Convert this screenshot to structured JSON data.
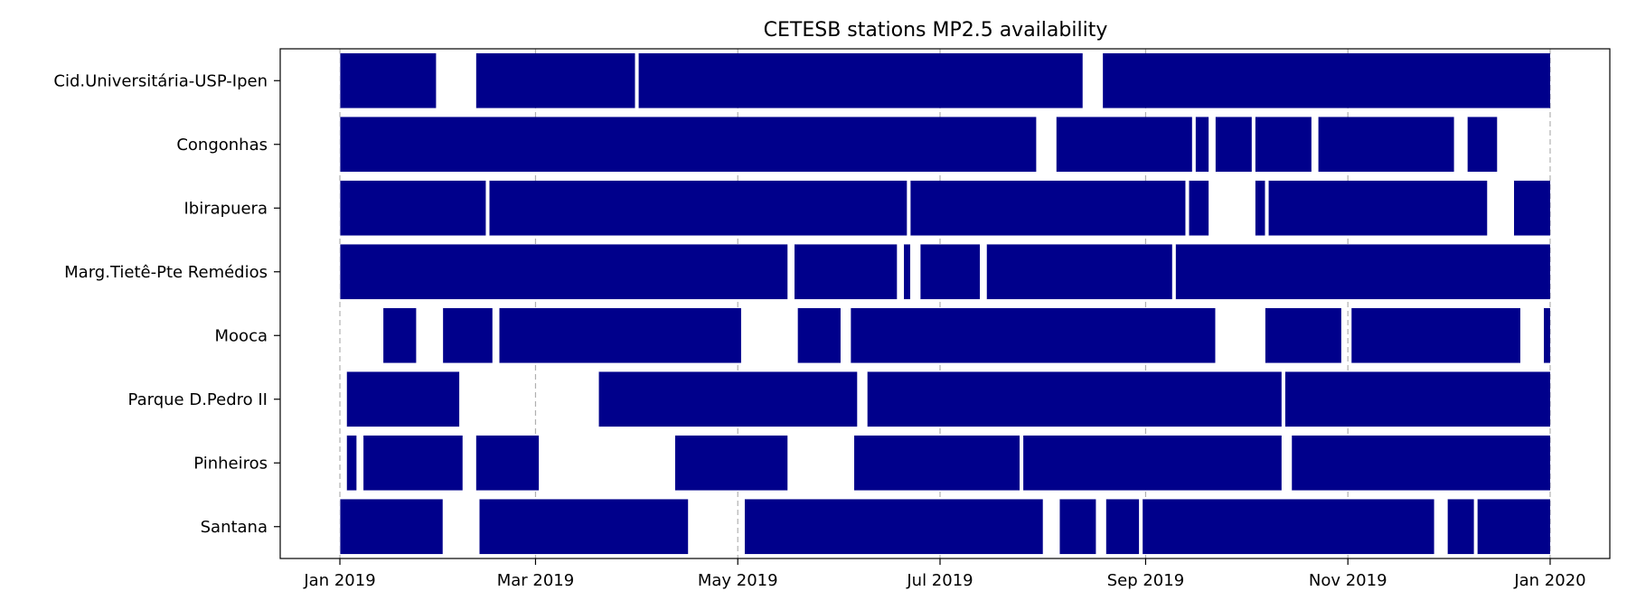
{
  "chart_data": {
    "type": "broken_barh",
    "title": "CETESB stations MP2.5 availability",
    "xlabel": "",
    "ylabel": "",
    "x_ticks": [
      "2019-01-01",
      "2019-03-01",
      "2019-05-01",
      "2019-07-01",
      "2019-09-01",
      "2019-11-01",
      "2020-01-01"
    ],
    "x_tick_labels": [
      "Jan 2019",
      "Mar 2019",
      "May 2019",
      "Jul 2019",
      "Sep 2019",
      "Nov 2019",
      "Jan 2020"
    ],
    "xlim": [
      "2018-12-14",
      "2020-01-19"
    ],
    "grid": "x-dashed",
    "bar_color": "#00008b",
    "stations": [
      {
        "name": "Cid.Universitária-USP-Ipen",
        "intervals": [
          [
            "2019-01-01",
            "2019-01-30"
          ],
          [
            "2019-02-11",
            "2019-03-31"
          ],
          [
            "2019-04-01",
            "2019-08-13"
          ],
          [
            "2019-08-19",
            "2020-01-01"
          ]
        ]
      },
      {
        "name": "Congonhas",
        "intervals": [
          [
            "2019-01-01",
            "2019-07-30"
          ],
          [
            "2019-08-05",
            "2019-09-15"
          ],
          [
            "2019-09-16",
            "2019-09-20"
          ],
          [
            "2019-09-22",
            "2019-10-03"
          ],
          [
            "2019-10-04",
            "2019-10-21"
          ],
          [
            "2019-10-23",
            "2019-12-03"
          ],
          [
            "2019-12-07",
            "2019-12-16"
          ]
        ]
      },
      {
        "name": "Ibirapuera",
        "intervals": [
          [
            "2019-01-01",
            "2019-02-14"
          ],
          [
            "2019-02-15",
            "2019-06-21"
          ],
          [
            "2019-06-22",
            "2019-09-13"
          ],
          [
            "2019-09-14",
            "2019-09-20"
          ],
          [
            "2019-10-04",
            "2019-10-07"
          ],
          [
            "2019-10-08",
            "2019-12-13"
          ],
          [
            "2019-12-21",
            "2020-01-01"
          ]
        ]
      },
      {
        "name": "Marg.Tietê-Pte Remédios",
        "intervals": [
          [
            "2019-01-01",
            "2019-05-16"
          ],
          [
            "2019-05-18",
            "2019-06-18"
          ],
          [
            "2019-06-20",
            "2019-06-22"
          ],
          [
            "2019-06-25",
            "2019-07-13"
          ],
          [
            "2019-07-15",
            "2019-09-09"
          ],
          [
            "2019-09-10",
            "2020-01-01"
          ]
        ]
      },
      {
        "name": "Mooca",
        "intervals": [
          [
            "2019-01-14",
            "2019-01-24"
          ],
          [
            "2019-02-01",
            "2019-02-16"
          ],
          [
            "2019-02-18",
            "2019-05-02"
          ],
          [
            "2019-05-19",
            "2019-06-01"
          ],
          [
            "2019-06-04",
            "2019-09-22"
          ],
          [
            "2019-10-07",
            "2019-10-30"
          ],
          [
            "2019-11-02",
            "2019-12-23"
          ],
          [
            "2019-12-30",
            "2020-01-01"
          ]
        ]
      },
      {
        "name": "Parque D.Pedro II",
        "intervals": [
          [
            "2019-01-03",
            "2019-02-06"
          ],
          [
            "2019-03-20",
            "2019-06-06"
          ],
          [
            "2019-06-09",
            "2019-10-12"
          ],
          [
            "2019-10-13",
            "2020-01-01"
          ]
        ]
      },
      {
        "name": "Pinheiros",
        "intervals": [
          [
            "2019-01-03",
            "2019-01-06"
          ],
          [
            "2019-01-08",
            "2019-02-07"
          ],
          [
            "2019-02-11",
            "2019-03-02"
          ],
          [
            "2019-04-12",
            "2019-05-16"
          ],
          [
            "2019-06-05",
            "2019-07-25"
          ],
          [
            "2019-07-26",
            "2019-10-12"
          ],
          [
            "2019-10-15",
            "2020-01-01"
          ]
        ]
      },
      {
        "name": "Santana",
        "intervals": [
          [
            "2019-01-01",
            "2019-02-01"
          ],
          [
            "2019-02-12",
            "2019-04-16"
          ],
          [
            "2019-05-03",
            "2019-08-01"
          ],
          [
            "2019-08-06",
            "2019-08-17"
          ],
          [
            "2019-08-20",
            "2019-08-30"
          ],
          [
            "2019-08-31",
            "2019-11-27"
          ],
          [
            "2019-12-01",
            "2019-12-09"
          ],
          [
            "2019-12-10",
            "2020-01-01"
          ]
        ]
      }
    ]
  }
}
